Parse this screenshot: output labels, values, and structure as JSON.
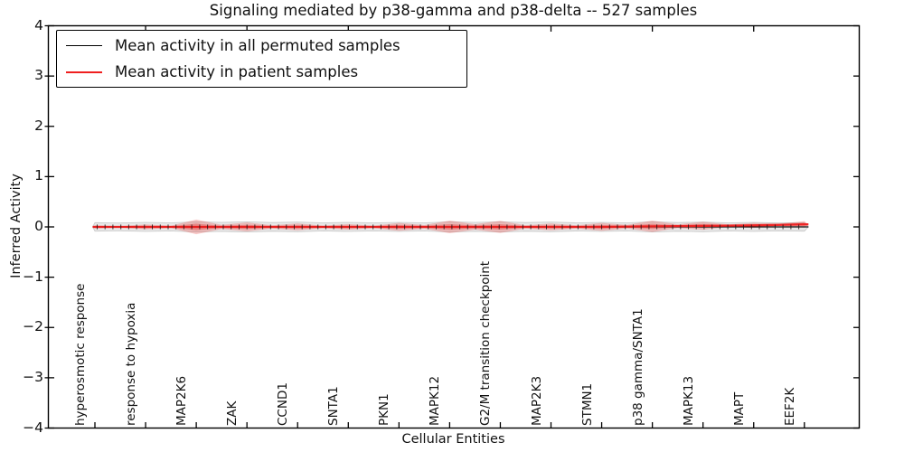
{
  "title": "Signaling mediated by p38-gamma and p38-delta -- 527 samples",
  "legend": {
    "position": "upper left",
    "items": [
      {
        "label": "Mean activity in all permuted samples",
        "color": "#000000"
      },
      {
        "label": "Mean activity in patient samples",
        "color": "#ef1f1f"
      }
    ]
  },
  "chart_data": {
    "type": "violin",
    "title": "Signaling mediated by p38-gamma and p38-delta -- 527 samples",
    "xlabel": "Cellular Entities",
    "ylabel": "Inferred Activity",
    "ylim": [
      -4,
      4
    ],
    "yticks": [
      4,
      3,
      2,
      1,
      0,
      -1,
      -2,
      -3,
      -4
    ],
    "grid": false,
    "legend_position": "upper left",
    "categories": [
      "hyperosmotic response",
      "response to hypoxia",
      "MAP2K6",
      "ZAK",
      "CCND1",
      "SNTA1",
      "PKN1",
      "MAPK12",
      "G2/M transition checkpoint",
      "MAP2K3",
      "STMN1",
      "p38 gamma/SNTA1",
      "MAPK13",
      "MAPT",
      "EEF2K"
    ],
    "series": [
      {
        "name": "Mean activity in all permuted samples",
        "line_color": "#111111",
        "fill_color": "#d9d9d9",
        "mean": [
          0,
          0,
          0,
          0,
          0,
          0,
          0,
          0,
          0,
          0,
          0,
          0,
          0,
          0,
          0
        ],
        "spread_half_width": [
          0.085,
          0.09,
          0.1,
          0.1,
          0.095,
          0.09,
          0.09,
          0.1,
          0.1,
          0.095,
          0.09,
          0.1,
          0.095,
          0.09,
          0.085
        ]
      },
      {
        "name": "Mean activity in patient samples",
        "line_color": "#ef1f1f",
        "fill_color": "#e53935",
        "mean": [
          0,
          0,
          0,
          0,
          0,
          0,
          0,
          0,
          0,
          0,
          0,
          0.01,
          0.02,
          0.03,
          0.05
        ],
        "spread_half_width": [
          0.03,
          0.05,
          0.145,
          0.09,
          0.07,
          0.055,
          0.08,
          0.125,
          0.12,
          0.07,
          0.08,
          0.115,
          0.08,
          0.05,
          0.065
        ]
      }
    ]
  },
  "colors": {
    "spine": "#000000",
    "permuted_band_fill": "#d9d9d9",
    "permuted_band_edge": "#bbbbbb",
    "patient_violin_fill": "#e53935",
    "patient_line": "#ef1f1f",
    "permuted_line": "#111111",
    "sample_tick": "#241414",
    "background": "#ffffff"
  }
}
